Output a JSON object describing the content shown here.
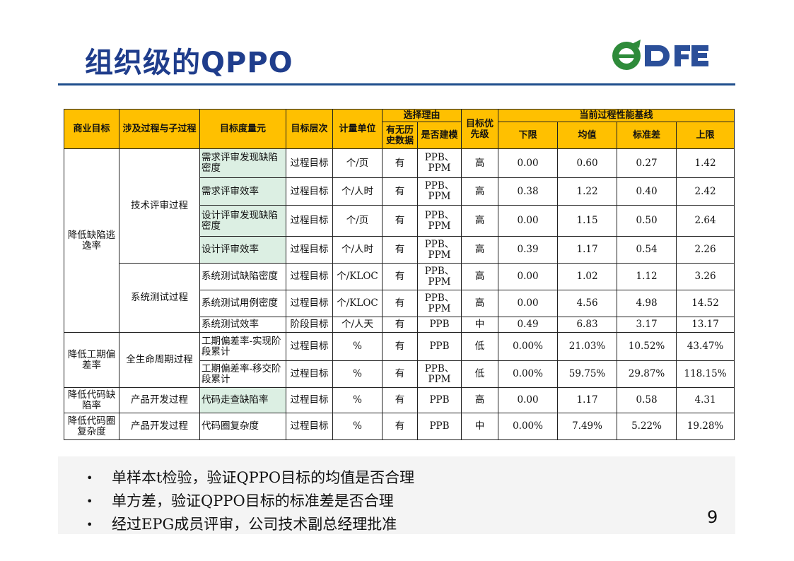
{
  "title": "组织级的QPPO",
  "logo_text": "DFE",
  "colors": {
    "title": "#1f3d8c",
    "header_bg": "#ffc000",
    "highlight": "#dcefe3",
    "rule": "#1f4e8c",
    "logo_green": "#2e8b3a",
    "logo_blue": "#2b4f99"
  },
  "table": {
    "headers": {
      "goal": "商业目标",
      "process": "涉及过程与子过程",
      "metric": "目标度量元",
      "level": "目标层次",
      "unit": "计量单位",
      "reason": "选择理由",
      "history": "有无历史数据",
      "modeled": "是否建模",
      "priority": "目标优先级",
      "baseline": "当前过程性能基线",
      "lower": "下限",
      "mean": "均值",
      "std": "标准差",
      "upper": "上限"
    },
    "groups": [
      {
        "goal": "降低缺陷逃逸率",
        "processes": [
          {
            "name": "技术评审过程",
            "rows": [
              {
                "metric": "需求评审发现缺陷密度",
                "level": "过程目标",
                "unit": "个/页",
                "history": "有",
                "modeled": "PPB、PPM",
                "priority": "高",
                "lower": "0.00",
                "mean": "0.60",
                "std": "0.27",
                "upper": "1.42"
              },
              {
                "metric": "需求评审效率",
                "level": "过程目标",
                "unit": "个/人时",
                "history": "有",
                "modeled": "PPB、PPM",
                "priority": "高",
                "lower": "0.38",
                "mean": "1.22",
                "std": "0.40",
                "upper": "2.42"
              },
              {
                "metric": "设计评审发现缺陷密度",
                "level": "过程目标",
                "unit": "个/页",
                "history": "有",
                "modeled": "PPB、PPM",
                "priority": "高",
                "lower": "0.00",
                "mean": "1.15",
                "std": "0.50",
                "upper": "2.64"
              },
              {
                "metric": "设计评审效率",
                "level": "过程目标",
                "unit": "个/人时",
                "history": "有",
                "modeled": "PPB、PPM",
                "priority": "高",
                "lower": "0.39",
                "mean": "1.17",
                "std": "0.54",
                "upper": "2.26"
              }
            ]
          },
          {
            "name": "系统测试过程",
            "rows": [
              {
                "metric": "系统测试缺陷密度",
                "level": "过程目标",
                "unit": "个/KLOC",
                "history": "有",
                "modeled": "PPB、PPM",
                "priority": "高",
                "lower": "0.00",
                "mean": "1.02",
                "std": "1.12",
                "upper": "3.26"
              },
              {
                "metric": "系统测试用例密度",
                "level": "过程目标",
                "unit": "个/KLOC",
                "history": "有",
                "modeled": "PPB、PPM",
                "priority": "高",
                "lower": "0.00",
                "mean": "4.56",
                "std": "4.98",
                "upper": "14.52"
              },
              {
                "metric": "系统测试效率",
                "level": "阶段目标",
                "unit": "个/人天",
                "history": "有",
                "modeled": "PPB",
                "priority": "中",
                "lower": "0.49",
                "mean": "6.83",
                "std": "3.17",
                "upper": "13.17"
              }
            ]
          }
        ]
      },
      {
        "goal": "降低工期偏差率",
        "processes": [
          {
            "name": "全生命周期过程",
            "rows": [
              {
                "metric": "工期偏差率-实现阶段累计",
                "level": "过程目标",
                "unit": "%",
                "history": "有",
                "modeled": "PPB",
                "priority": "低",
                "lower": "0.00%",
                "mean": "21.03%",
                "std": "10.52%",
                "upper": "43.47%"
              },
              {
                "metric": "工期偏差率-移交阶段累计",
                "level": "过程目标",
                "unit": "%",
                "history": "有",
                "modeled": "PPB、PPM",
                "priority": "低",
                "lower": "0.00%",
                "mean": "59.75%",
                "std": "29.87%",
                "upper": "118.15%"
              }
            ]
          }
        ]
      },
      {
        "goal": "降低代码缺陷率",
        "processes": [
          {
            "name": "产品开发过程",
            "rows": [
              {
                "metric": "代码走查缺陷率",
                "level": "过程目标",
                "unit": "%",
                "history": "有",
                "modeled": "PPB",
                "priority": "高",
                "lower": "0.00",
                "mean": "1.17",
                "std": "0.58",
                "upper": "4.31"
              }
            ]
          }
        ]
      },
      {
        "goal": "降低代码圈复杂度",
        "processes": [
          {
            "name": "产品开发过程",
            "rows": [
              {
                "metric": "代码圈复杂度",
                "level": "过程目标",
                "unit": "%",
                "history": "有",
                "modeled": "PPB",
                "priority": "中",
                "lower": "0.00%",
                "mean": "7.49%",
                "std": "5.22%",
                "upper": "19.28%"
              }
            ]
          }
        ]
      }
    ]
  },
  "bullets": [
    "单样本t检验，验证QPPO目标的均值是否合理",
    "单方差，验证QPPO目标的标准差是否合理",
    "经过EPG成员评审，公司技术副总经理批准"
  ],
  "page_number": "9"
}
